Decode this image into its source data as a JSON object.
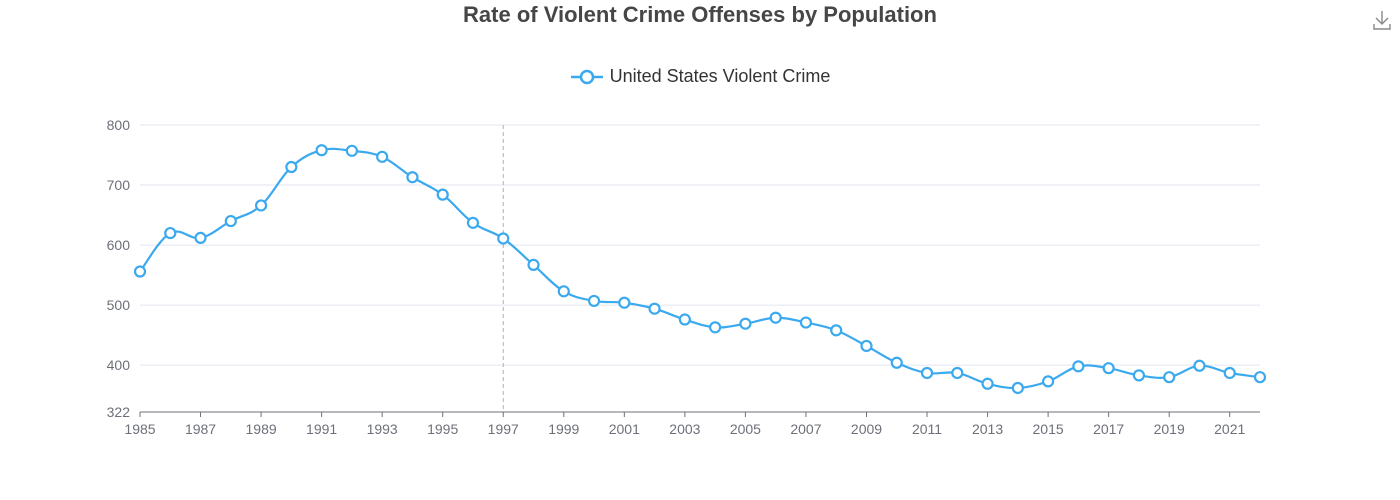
{
  "chart_data": {
    "type": "line",
    "title": "Rate of Violent Crime Offenses by Population",
    "legend": [
      "United States Violent Crime"
    ],
    "legend_position": "top-center",
    "series": [
      {
        "name": "United States Violent Crime",
        "color": "#3ba9ee",
        "smooth": true,
        "values": [
          556,
          620,
          612,
          640,
          666,
          730,
          758,
          757,
          747,
          713,
          684,
          637,
          611,
          567,
          523,
          507,
          504,
          494,
          476,
          463,
          469,
          479,
          471,
          458,
          432,
          404,
          387,
          387,
          369,
          362,
          373,
          398,
          395,
          383,
          380,
          399,
          387,
          380
        ]
      }
    ],
    "x": [
      1985,
      1986,
      1987,
      1988,
      1989,
      1990,
      1991,
      1992,
      1993,
      1994,
      1995,
      1996,
      1997,
      1998,
      1999,
      2000,
      2001,
      2002,
      2003,
      2004,
      2005,
      2006,
      2007,
      2008,
      2009,
      2010,
      2011,
      2012,
      2013,
      2014,
      2015,
      2016,
      2017,
      2018,
      2019,
      2020,
      2021,
      2022
    ],
    "xticks": [
      "1985",
      "1987",
      "1989",
      "1991",
      "1993",
      "1995",
      "1997",
      "1999",
      "2001",
      "2003",
      "2005",
      "2007",
      "2009",
      "2011",
      "2013",
      "2015",
      "2017",
      "2019",
      "2021"
    ],
    "yticks": [
      "322",
      "400",
      "500",
      "600",
      "700",
      "800"
    ],
    "ylim": [
      322,
      800
    ],
    "xlabel": "",
    "ylabel": "",
    "grid": true,
    "crosshair_x": 1997
  },
  "toolbar": {
    "download_icon": "download-icon"
  }
}
